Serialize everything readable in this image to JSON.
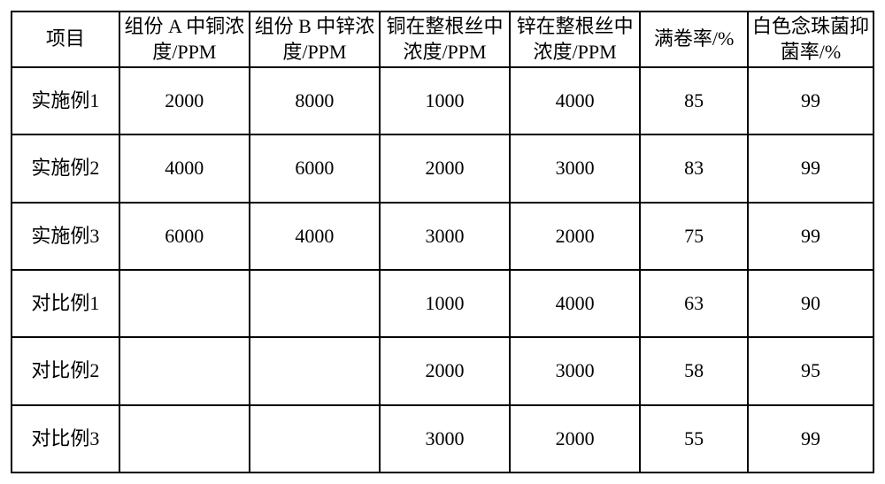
{
  "table": {
    "columns": [
      "项目",
      "组份 A 中铜浓度/PPM",
      "组份 B 中锌浓度/PPM",
      "铜在整根丝中浓度/PPM",
      "锌在整根丝中浓度/PPM",
      "满卷率/%",
      "白色念珠菌抑菌率/%"
    ],
    "rows": [
      {
        "label": "实施例1",
        "cells": [
          "2000",
          "8000",
          "1000",
          "4000",
          "85",
          "99"
        ]
      },
      {
        "label": "实施例2",
        "cells": [
          "4000",
          "6000",
          "2000",
          "3000",
          "83",
          "99"
        ]
      },
      {
        "label": "实施例3",
        "cells": [
          "6000",
          "4000",
          "3000",
          "2000",
          "75",
          "99"
        ]
      },
      {
        "label": "对比例1",
        "cells": [
          "",
          "",
          "1000",
          "4000",
          "63",
          "90"
        ]
      },
      {
        "label": "对比例2",
        "cells": [
          "",
          "",
          "2000",
          "3000",
          "58",
          "95"
        ]
      },
      {
        "label": "对比例3",
        "cells": [
          "",
          "",
          "3000",
          "2000",
          "55",
          "99"
        ]
      }
    ],
    "border_color": "#000000",
    "background_color": "#ffffff",
    "font_family": "SimSun",
    "font_size_pt": 16
  }
}
